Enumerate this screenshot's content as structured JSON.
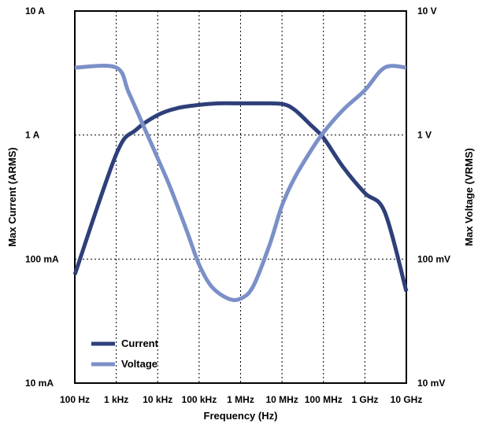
{
  "chart_data": {
    "type": "line",
    "x_scale": "log",
    "y_scale": "log",
    "grid": true,
    "legend_position": "bottom-left",
    "xlabel": "Frequency (Hz)",
    "ylabel_left": "Max Current (ARMS)",
    "ylabel_right": "Max Voltage (VRMS)",
    "xlim": [
      100,
      10000000000
    ],
    "ylim_left": [
      0.01,
      10
    ],
    "ylim_right": [
      0.01,
      10
    ],
    "x_ticks": [
      {
        "value": 100,
        "label": "100 Hz"
      },
      {
        "value": 1000,
        "label": "1 kHz"
      },
      {
        "value": 10000,
        "label": "10 kHz"
      },
      {
        "value": 100000,
        "label": "100 kHz"
      },
      {
        "value": 1000000,
        "label": "1 MHz"
      },
      {
        "value": 10000000,
        "label": "10 MHz"
      },
      {
        "value": 100000000,
        "label": "100 MHz"
      },
      {
        "value": 1000000000,
        "label": "1 GHz"
      },
      {
        "value": 10000000000,
        "label": "10 GHz"
      }
    ],
    "y_ticks_left": [
      {
        "value": 10,
        "label": "10 A"
      },
      {
        "value": 1,
        "label": "1 A"
      },
      {
        "value": 0.1,
        "label": "100 mA"
      },
      {
        "value": 0.01,
        "label": "10 mA"
      }
    ],
    "y_ticks_right": [
      {
        "value": 10,
        "label": "10 V"
      },
      {
        "value": 1,
        "label": "1 V"
      },
      {
        "value": 0.1,
        "label": "100 mV"
      },
      {
        "value": 0.01,
        "label": "10 mV"
      }
    ],
    "series": [
      {
        "name": "Current",
        "axis": "left",
        "color": "#2e3f7a",
        "x": [
          100,
          1000,
          3000,
          10000,
          30000,
          100000,
          300000,
          1000000,
          3000000,
          10000000,
          20000000,
          50000000,
          100000000,
          300000000,
          1000000000,
          3000000000,
          10000000000
        ],
        "y": [
          0.075,
          0.7,
          1.1,
          1.45,
          1.65,
          1.75,
          1.8,
          1.8,
          1.8,
          1.78,
          1.6,
          1.2,
          0.95,
          0.55,
          0.34,
          0.24,
          0.055
        ]
      },
      {
        "name": "Voltage",
        "axis": "right",
        "color": "#7b90c8",
        "x": [
          100,
          1000,
          2000,
          5000,
          10000,
          20000,
          50000,
          100000,
          200000,
          500000,
          1000000,
          2000000,
          5000000,
          10000000,
          20000000,
          50000000,
          100000000,
          300000000,
          1000000000,
          3000000000,
          10000000000
        ],
        "y": [
          3.5,
          3.5,
          2.2,
          1.1,
          0.65,
          0.38,
          0.17,
          0.09,
          0.06,
          0.048,
          0.048,
          0.06,
          0.13,
          0.27,
          0.45,
          0.75,
          1.05,
          1.6,
          2.3,
          3.5,
          3.5
        ]
      }
    ]
  }
}
